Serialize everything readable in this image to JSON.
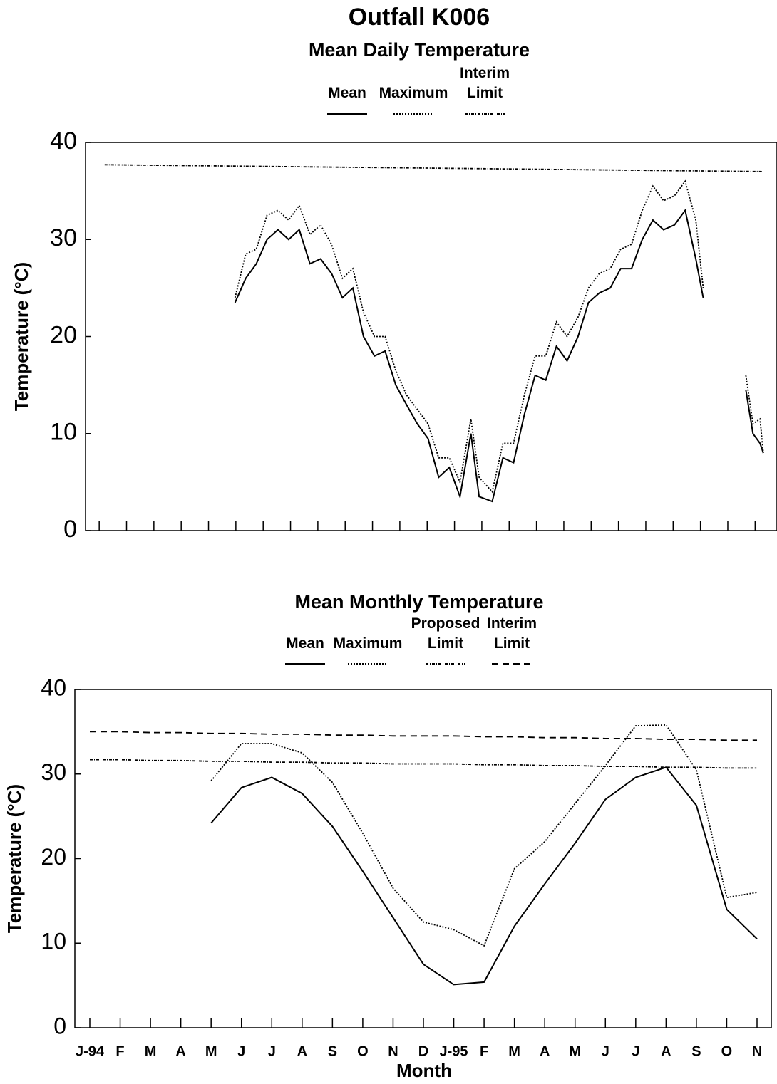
{
  "title": "Outfall K006",
  "chart_data": [
    {
      "type": "line",
      "title": "Mean Daily Temperature",
      "ylabel": "Temperature (°C)",
      "xlim": [
        -0.5,
        24.8
      ],
      "xticks": [
        0,
        1,
        2,
        3,
        4,
        5,
        6,
        7,
        8,
        9,
        10,
        11,
        12,
        13,
        14,
        15,
        16,
        17,
        18,
        19,
        20,
        21,
        22,
        23,
        24
      ],
      "ylim": [
        0,
        40
      ],
      "yticks": [
        0,
        10,
        20,
        30,
        40
      ],
      "legend": "top",
      "series": [
        {
          "name": "Mean",
          "color": "#000000",
          "style": "solid",
          "x": [
            4.97,
            5.36,
            5.75,
            6.14,
            6.54,
            6.93,
            7.32,
            7.71,
            8.1,
            8.5,
            8.9,
            9.28,
            9.67,
            10.07,
            10.46,
            10.85,
            11.24,
            11.64,
            12.03,
            12.42,
            12.81,
            13.2,
            13.6,
            13.9,
            14.38,
            14.77,
            15.16,
            15.56,
            15.95,
            16.34,
            16.73,
            17.12,
            17.52,
            17.9,
            18.3,
            18.7,
            19.08,
            19.48,
            19.87,
            20.26,
            20.65,
            21.05,
            21.44,
            21.83,
            22.1,
            22.9,
            23.66,
            23.92,
            24.18,
            24.3
          ],
          "values": [
            23.5,
            26,
            27.5,
            30,
            31,
            30,
            31,
            27.5,
            28,
            26.5,
            24,
            25,
            20,
            18,
            18.5,
            15,
            13,
            11,
            9.5,
            5.5,
            6.5,
            3.5,
            10,
            3.5,
            3,
            7.5,
            7,
            12,
            16,
            15.5,
            19,
            17.5,
            20,
            23.5,
            24.5,
            25,
            27,
            27,
            30,
            32,
            31,
            31.5,
            33,
            28,
            24,
            null,
            14.5,
            10,
            9,
            8
          ]
        },
        {
          "name": "Maximum",
          "color": "#000000",
          "style": "dotted",
          "x": [
            4.97,
            5.36,
            5.75,
            6.14,
            6.54,
            6.93,
            7.32,
            7.71,
            8.1,
            8.5,
            8.9,
            9.28,
            9.67,
            10.07,
            10.46,
            10.85,
            11.24,
            11.64,
            12.03,
            12.42,
            12.81,
            13.2,
            13.6,
            13.9,
            14.38,
            14.77,
            15.16,
            15.56,
            15.95,
            16.34,
            16.73,
            17.12,
            17.52,
            17.9,
            18.3,
            18.7,
            19.08,
            19.48,
            19.87,
            20.26,
            20.65,
            21.05,
            21.44,
            21.83,
            22.1,
            22.9,
            23.66,
            23.92,
            24.18,
            24.3
          ],
          "values": [
            24,
            28.5,
            29,
            32.5,
            33,
            32,
            33.5,
            30.5,
            31.5,
            29.5,
            26,
            27,
            22.5,
            20,
            20,
            16.5,
            14,
            12.5,
            11,
            7.5,
            7.5,
            5,
            11.5,
            5.5,
            4,
            9,
            9,
            14,
            18,
            18,
            21.5,
            20,
            22,
            25,
            26.5,
            27,
            29,
            29.5,
            33,
            35.5,
            34,
            34.5,
            36,
            32,
            25,
            null,
            16,
            11,
            11.5,
            8
          ]
        },
        {
          "name": "Interim Limit",
          "color": "#000000",
          "style": "dashdot",
          "x": [
            0.2,
            24.3
          ],
          "values": [
            37.7,
            37.0
          ]
        }
      ]
    },
    {
      "type": "line",
      "title": "Mean Monthly Temperature",
      "xlabel": "Month",
      "ylabel": "Temperature (°C)",
      "categories": [
        "J-94",
        "F",
        "M",
        "A",
        "M",
        "J",
        "J",
        "A",
        "S",
        "O",
        "N",
        "D",
        "J-95",
        "F",
        "M",
        "A",
        "M",
        "J",
        "J",
        "A",
        "S",
        "O",
        "N"
      ],
      "ylim": [
        0,
        40
      ],
      "yticks": [
        0,
        10,
        20,
        30,
        40
      ],
      "legend": "top",
      "series": [
        {
          "name": "Mean",
          "color": "#000000",
          "style": "solid",
          "values": [
            null,
            null,
            null,
            null,
            24.2,
            28.4,
            29.6,
            27.7,
            23.8,
            18.5,
            13,
            7.5,
            5.1,
            5.4,
            12,
            17,
            21.8,
            27,
            29.6,
            30.8,
            26.3,
            14,
            10.5
          ]
        },
        {
          "name": "Maximum",
          "color": "#000000",
          "style": "dotted",
          "values": [
            null,
            null,
            null,
            null,
            29.2,
            33.6,
            33.6,
            32.5,
            29,
            23,
            16.5,
            12.5,
            11.6,
            9.7,
            18.8,
            22,
            26.5,
            31,
            35.7,
            35.8,
            30.5,
            15.4,
            16
          ]
        },
        {
          "name": "Proposed Limit",
          "color": "#000000",
          "style": "dashdot",
          "values": [
            31.7,
            31.7,
            31.6,
            31.6,
            31.5,
            31.5,
            31.4,
            31.4,
            31.3,
            31.3,
            31.2,
            31.2,
            31.2,
            31.1,
            31.1,
            31.0,
            31.0,
            30.9,
            30.9,
            30.8,
            30.8,
            30.7,
            30.7
          ]
        },
        {
          "name": "Interim Limit",
          "color": "#000000",
          "style": "dashed",
          "values": [
            35.0,
            35.0,
            34.9,
            34.9,
            34.8,
            34.8,
            34.7,
            34.7,
            34.6,
            34.6,
            34.5,
            34.5,
            34.5,
            34.4,
            34.4,
            34.3,
            34.3,
            34.2,
            34.2,
            34.1,
            34.1,
            34.0,
            34.0
          ]
        }
      ]
    }
  ]
}
